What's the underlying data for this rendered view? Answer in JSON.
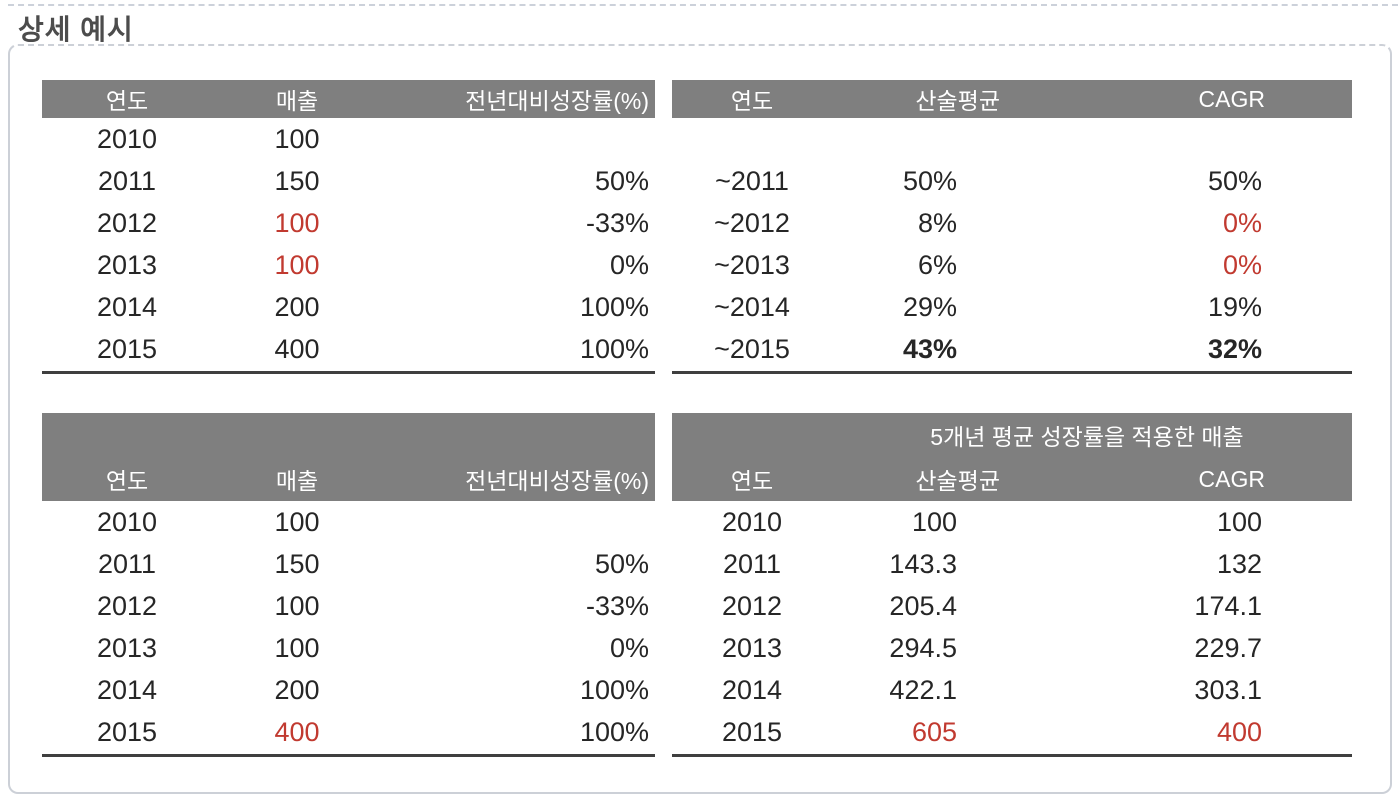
{
  "page": {
    "title": "상세 예시"
  },
  "colors": {
    "header_bg": "#7f7f7f",
    "header_text": "#ffffff",
    "body_text": "#262626",
    "accent_red": "#c13a30",
    "table_rule": "#3f3f3f"
  },
  "tables": {
    "top_left": {
      "headers": [
        "연도",
        "매출",
        "전년대비성장률(%)"
      ],
      "rows": [
        [
          "2010",
          "100",
          ""
        ],
        [
          "2011",
          "150",
          "50%"
        ],
        [
          "2012",
          "100",
          "-33%"
        ],
        [
          "2013",
          "100",
          "0%"
        ],
        [
          "2014",
          "200",
          "100%"
        ],
        [
          "2015",
          "400",
          "100%"
        ]
      ]
    },
    "top_right": {
      "headers": [
        "연도",
        "산술평균",
        "CAGR"
      ],
      "rows": [
        [
          "",
          "",
          ""
        ],
        [
          "~2011",
          "50%",
          "50%"
        ],
        [
          "~2012",
          "8%",
          "0%"
        ],
        [
          "~2013",
          "6%",
          "0%"
        ],
        [
          "~2014",
          "29%",
          "19%"
        ],
        [
          "~2015",
          "43%",
          "32%"
        ]
      ]
    },
    "bottom_left": {
      "headers": [
        "연도",
        "매출",
        "전년대비성장률(%)"
      ],
      "rows": [
        [
          "2010",
          "100",
          ""
        ],
        [
          "2011",
          "150",
          "50%"
        ],
        [
          "2012",
          "100",
          "-33%"
        ],
        [
          "2013",
          "100",
          "0%"
        ],
        [
          "2014",
          "200",
          "100%"
        ],
        [
          "2015",
          "400",
          "100%"
        ]
      ]
    },
    "bottom_right": {
      "super_header": "5개년 평균 성장률을 적용한 매출",
      "headers": [
        "연도",
        "산술평균",
        "CAGR"
      ],
      "rows": [
        [
          "2010",
          "100",
          "100"
        ],
        [
          "2011",
          "143.3",
          "132"
        ],
        [
          "2012",
          "205.4",
          "174.1"
        ],
        [
          "2013",
          "294.5",
          "229.7"
        ],
        [
          "2014",
          "422.1",
          "303.1"
        ],
        [
          "2015",
          "605",
          "400"
        ]
      ]
    }
  }
}
